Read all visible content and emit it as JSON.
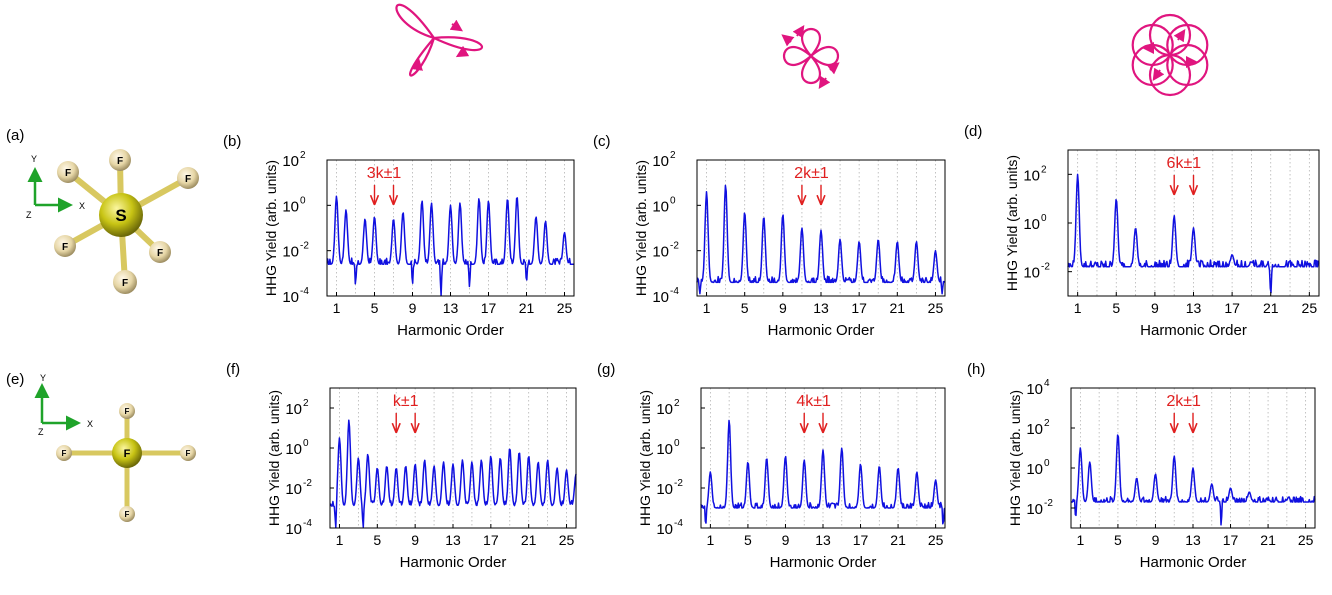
{
  "figure": {
    "panel_labels": [
      "(a)",
      "(b)",
      "(c)",
      "(d)",
      "(e)",
      "(f)",
      "(g)",
      "(h)"
    ],
    "trefoil_field": "3-fold rose laser field",
    "fourfold_field": "4-fold rose laser field",
    "sixfold_field": "6-fold rose laser field",
    "molecule_top": {
      "central_atom": "S",
      "ligand_atom": "F",
      "axis_x": "X",
      "axis_y": "Y",
      "axis_z": "Z"
    },
    "molecule_bottom": {
      "central_atom": "F",
      "ligand_atom": "F",
      "axis_x": "X",
      "axis_y": "Y",
      "axis_z": "Z"
    },
    "colors": {
      "curve": "#1010e0",
      "annotation": "#e02020",
      "field": "#e0157f",
      "axes_green": "#1fa32a",
      "atom_s": "#c8c414",
      "atom_f": "#e6d6a6"
    }
  },
  "chart_data": [
    {
      "panel": "(b)",
      "type": "line",
      "title": "",
      "xlabel": "Harmonic Order",
      "ylabel": "HHG Yield  (arb. units)",
      "xlim": [
        0,
        26
      ],
      "ylim_log10": [
        -4,
        2
      ],
      "xticks": [
        "1",
        "5",
        "9",
        "13",
        "17",
        "21",
        "25"
      ],
      "yticks": [
        {
          "base": "10",
          "exp": "-4"
        },
        {
          "base": "10",
          "exp": "-2"
        },
        {
          "base": "10",
          "exp": "0"
        },
        {
          "base": "10",
          "exp": "2"
        }
      ],
      "annotation": "3k±1",
      "arrows_at": [
        5,
        7
      ],
      "baseline_log10": -2.6,
      "peaks": [
        [
          1,
          0.4
        ],
        [
          2,
          -0.2
        ],
        [
          4,
          -0.6
        ],
        [
          5,
          -0.5
        ],
        [
          7,
          -0.6
        ],
        [
          8,
          -0.3
        ],
        [
          10,
          0.2
        ],
        [
          11,
          0.1
        ],
        [
          13,
          0
        ],
        [
          14,
          0.1
        ],
        [
          16,
          0.3
        ],
        [
          17,
          0.2
        ],
        [
          19,
          0.3
        ],
        [
          20,
          0.4
        ],
        [
          22,
          -0.5
        ],
        [
          23,
          -0.7
        ],
        [
          25,
          -1.2
        ]
      ],
      "dips": [
        [
          3,
          -3.5
        ],
        [
          9,
          -3.5
        ],
        [
          12,
          -4
        ],
        [
          15,
          -3.6
        ],
        [
          21,
          -3.4
        ]
      ]
    },
    {
      "panel": "(c)",
      "type": "line",
      "title": "",
      "xlabel": "Harmonic Order",
      "ylabel": "HHG Yield  (arb. units)",
      "xlim": [
        0,
        26
      ],
      "ylim_log10": [
        -4,
        2
      ],
      "xticks": [
        "1",
        "5",
        "9",
        "13",
        "17",
        "21",
        "25"
      ],
      "yticks": [
        {
          "base": "10",
          "exp": "-4"
        },
        {
          "base": "10",
          "exp": "-2"
        },
        {
          "base": "10",
          "exp": "0"
        },
        {
          "base": "10",
          "exp": "2"
        }
      ],
      "annotation": "2k±1",
      "arrows_at": [
        11,
        13
      ],
      "baseline_log10": -3.4,
      "peaks": [
        [
          1,
          0.6
        ],
        [
          3,
          0.9
        ],
        [
          5,
          -0.3
        ],
        [
          7,
          -0.5
        ],
        [
          9,
          -0.4
        ],
        [
          11,
          -1
        ],
        [
          13,
          -1.1
        ],
        [
          15,
          -1.5
        ],
        [
          17,
          -1.6
        ],
        [
          19,
          -1.5
        ],
        [
          21,
          -1.6
        ],
        [
          23,
          -1.6
        ],
        [
          25,
          -2
        ]
      ],
      "dips": [
        [
          0.3,
          -3.9
        ],
        [
          25.7,
          -3.9
        ]
      ]
    },
    {
      "panel": "(d)",
      "type": "line",
      "title": "",
      "xlabel": "Harmonic Order",
      "ylabel": "HHG Yield  (arb. units)",
      "xlim": [
        0,
        26
      ],
      "ylim_log10": [
        -3,
        3
      ],
      "xticks": [
        "1",
        "5",
        "9",
        "13",
        "17",
        "21",
        "25"
      ],
      "yticks": [
        {
          "base": "10",
          "exp": "-2"
        },
        {
          "base": "10",
          "exp": "0"
        },
        {
          "base": "10",
          "exp": "2"
        }
      ],
      "annotation": "6k±1",
      "arrows_at": [
        11,
        13
      ],
      "baseline_log10": -1.8,
      "peaks": [
        [
          1,
          2
        ],
        [
          5,
          1
        ],
        [
          7,
          -0.2
        ],
        [
          11,
          0.3
        ],
        [
          13,
          -0.2
        ],
        [
          17,
          -1.3
        ],
        [
          19,
          -1.6
        ],
        [
          23,
          -2.4
        ],
        [
          25,
          -2.3
        ]
      ],
      "dips": [
        [
          21,
          -3
        ]
      ]
    },
    {
      "panel": "(f)",
      "type": "line",
      "title": "",
      "xlabel": "Harmonic Order",
      "ylabel": "HHG Yield  (arb. units)",
      "xlim": [
        0,
        26
      ],
      "ylim_log10": [
        -4,
        3
      ],
      "xticks": [
        "1",
        "5",
        "9",
        "13",
        "17",
        "21",
        "25"
      ],
      "yticks": [
        {
          "base": "10",
          "exp": "-4"
        },
        {
          "base": "10",
          "exp": "-2"
        },
        {
          "base": "10",
          "exp": "0"
        },
        {
          "base": "10",
          "exp": "2"
        }
      ],
      "annotation": "k±1",
      "arrows_at": [
        7,
        9
      ],
      "baseline_log10": -2.9,
      "peaks": [
        [
          1,
          0.5
        ],
        [
          2,
          1.4
        ],
        [
          3,
          -0.5
        ],
        [
          4,
          -0.3
        ],
        [
          5,
          -1
        ],
        [
          6,
          -0.9
        ],
        [
          7,
          -1
        ],
        [
          8,
          -0.9
        ],
        [
          9,
          -0.8
        ],
        [
          10,
          -0.6
        ],
        [
          11,
          -0.9
        ],
        [
          12,
          -0.7
        ],
        [
          13,
          -0.8
        ],
        [
          14,
          -0.6
        ],
        [
          15,
          -0.7
        ],
        [
          16,
          -0.6
        ],
        [
          17,
          -0.4
        ],
        [
          18,
          -0.5
        ],
        [
          19,
          0
        ],
        [
          20,
          -0.2
        ],
        [
          21,
          -0.4
        ],
        [
          22,
          -0.7
        ],
        [
          23,
          -0.6
        ],
        [
          24,
          -1
        ],
        [
          25,
          -1.1
        ],
        [
          26,
          -1.3
        ]
      ],
      "dips": [
        [
          0.6,
          -4
        ],
        [
          3.5,
          -4
        ]
      ]
    },
    {
      "panel": "(g)",
      "type": "line",
      "title": "",
      "xlabel": "Harmonic Order",
      "ylabel": "HHG Yield  (arb. units)",
      "xlim": [
        0,
        26
      ],
      "ylim_log10": [
        -4,
        3
      ],
      "xticks": [
        "1",
        "5",
        "9",
        "13",
        "17",
        "21",
        "25"
      ],
      "yticks": [
        {
          "base": "10",
          "exp": "-4"
        },
        {
          "base": "10",
          "exp": "-2"
        },
        {
          "base": "10",
          "exp": "0"
        },
        {
          "base": "10",
          "exp": "2"
        }
      ],
      "annotation": "4k±1",
      "arrows_at": [
        11,
        13
      ],
      "baseline_log10": -3,
      "peaks": [
        [
          1,
          -1.2
        ],
        [
          3,
          1.4
        ],
        [
          5,
          -0.7
        ],
        [
          7,
          -0.5
        ],
        [
          9,
          -0.4
        ],
        [
          11,
          -0.6
        ],
        [
          13,
          -0.1
        ],
        [
          15,
          0
        ],
        [
          17,
          -0.8
        ],
        [
          19,
          -0.9
        ],
        [
          21,
          -1
        ],
        [
          23,
          -1.2
        ],
        [
          25,
          -1.6
        ]
      ],
      "dips": [
        [
          0.5,
          -3.9
        ],
        [
          25.8,
          -3.9
        ]
      ]
    },
    {
      "panel": "(h)",
      "type": "line",
      "title": "",
      "xlabel": "Harmonic Order",
      "ylabel": "HHG Yield  (arb. units)",
      "xlim": [
        0,
        26
      ],
      "ylim_log10": [
        -3,
        4
      ],
      "xticks": [
        "1",
        "5",
        "9",
        "13",
        "17",
        "21",
        "25"
      ],
      "yticks": [
        {
          "base": "10",
          "exp": "-2"
        },
        {
          "base": "10",
          "exp": "0"
        },
        {
          "base": "10",
          "exp": "2"
        },
        {
          "base": "10",
          "exp": "4"
        }
      ],
      "annotation": "2k±1",
      "arrows_at": [
        11,
        13
      ],
      "baseline_log10": -1.7,
      "peaks": [
        [
          1,
          1
        ],
        [
          2,
          0.3
        ],
        [
          5,
          1.7
        ],
        [
          7,
          -0.5
        ],
        [
          9,
          -0.3
        ],
        [
          11,
          0.6
        ],
        [
          13,
          0
        ],
        [
          15,
          -0.8
        ],
        [
          17,
          -1
        ],
        [
          19,
          -1.2
        ],
        [
          21,
          -1.6
        ],
        [
          23,
          -1.6
        ],
        [
          25,
          -2.3
        ]
      ],
      "dips": [
        [
          16,
          -2.9
        ],
        [
          0.5,
          -2.5
        ]
      ]
    }
  ]
}
